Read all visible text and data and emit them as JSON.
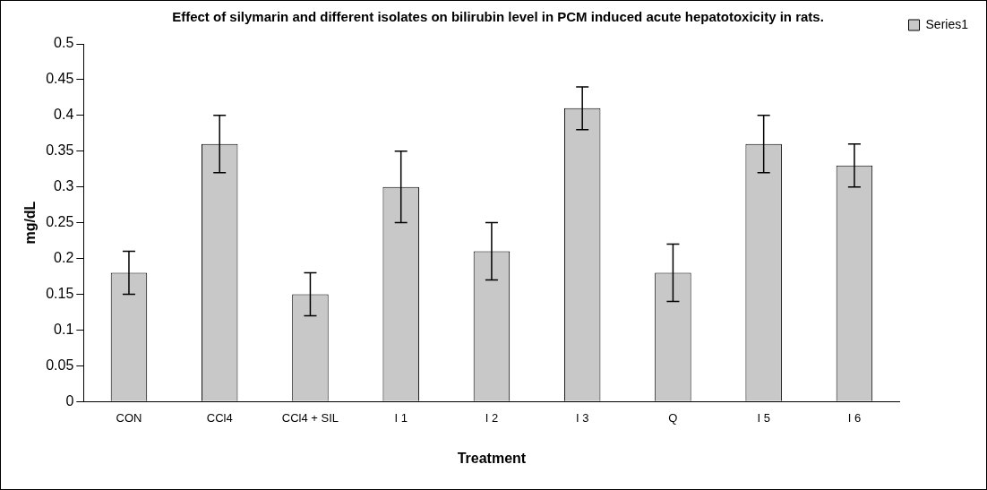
{
  "chart_data": {
    "type": "bar",
    "title": "Effect of silymarin and different isolates on bilirubin level in PCM induced acute hepatotoxicity in rats.",
    "xlabel": "Treatment",
    "ylabel": "mg/dL",
    "categories": [
      "CON",
      "CCl4",
      "CCl4 + SIL",
      "I 1",
      "I 2",
      "I 3",
      "Q",
      "I 5",
      "I 6"
    ],
    "series": [
      {
        "name": "Series1",
        "color": "#c8c8c8",
        "values": [
          0.18,
          0.36,
          0.15,
          0.3,
          0.21,
          0.41,
          0.18,
          0.36,
          0.33
        ],
        "errors": [
          0.03,
          0.04,
          0.03,
          0.05,
          0.04,
          0.03,
          0.04,
          0.04,
          0.03
        ]
      }
    ],
    "ylim": [
      0,
      0.5
    ],
    "yticks": [
      0,
      0.05,
      0.1,
      0.15,
      0.2,
      0.25,
      0.3,
      0.35,
      0.4,
      0.45,
      0.5
    ],
    "grid": false,
    "legend": "top right"
  }
}
